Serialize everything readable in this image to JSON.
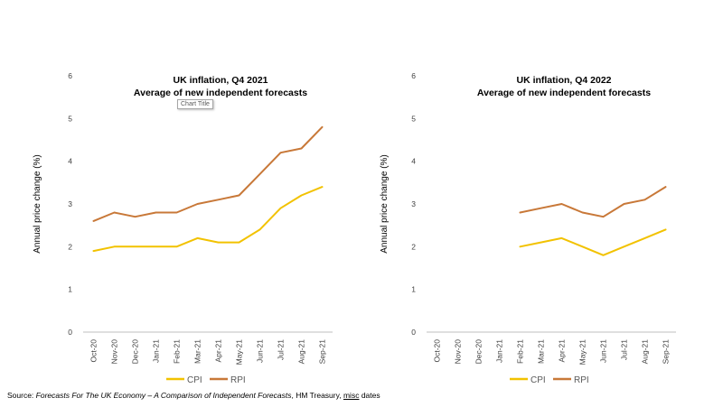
{
  "colors": {
    "cpi": "#f2c200",
    "rpi": "#c87838",
    "axis": "#bfbfbf"
  },
  "tooltip": "Chart Title",
  "source": {
    "prefix": "Source: ",
    "title": "Forecasts For The UK Economy – A Comparison of Independent Forecasts",
    "middle": ", HM Treasury, ",
    "misc": "misc",
    "suffix": " dates"
  },
  "chart_data": [
    {
      "type": "line",
      "title": "UK inflation, Q4 2021",
      "subtitle": "Average of new independent forecasts",
      "ylabel": "Annual price change (%)",
      "xlabel": "",
      "ylim": [
        0,
        6
      ],
      "yticks": [
        0,
        1,
        2,
        3,
        4,
        5,
        6
      ],
      "legend_position": "bottom",
      "categories": [
        "Oct-20",
        "Nov-20",
        "Dec-20",
        "Jan-21",
        "Feb-21",
        "Mar-21",
        "Apr-21",
        "May-21",
        "Jun-21",
        "Jul-21",
        "Aug-21",
        "Sep-21"
      ],
      "series": [
        {
          "name": "CPI",
          "values": [
            1.9,
            2.0,
            2.0,
            2.0,
            2.0,
            2.2,
            2.1,
            2.1,
            2.4,
            2.9,
            3.2,
            3.4
          ]
        },
        {
          "name": "RPI",
          "values": [
            2.6,
            2.8,
            2.7,
            2.8,
            2.8,
            3.0,
            3.1,
            3.2,
            3.7,
            4.2,
            4.3,
            4.8
          ]
        }
      ]
    },
    {
      "type": "line",
      "title": "UK inflation, Q4 2022",
      "subtitle": "Average of new independent forecasts",
      "ylabel": "Annual price change (%)",
      "xlabel": "",
      "ylim": [
        0,
        6
      ],
      "yticks": [
        0,
        1,
        2,
        3,
        4,
        5,
        6
      ],
      "legend_position": "bottom",
      "categories": [
        "Oct-20",
        "Nov-20",
        "Dec-20",
        "Jan-21",
        "Feb-21",
        "Mar-21",
        "Apr-21",
        "May-21",
        "Jun-21",
        "Jul-21",
        "Aug-21",
        "Sep-21"
      ],
      "series": [
        {
          "name": "CPI",
          "values": [
            null,
            null,
            null,
            null,
            2.0,
            2.1,
            2.2,
            2.0,
            1.8,
            2.0,
            2.2,
            2.4
          ]
        },
        {
          "name": "RPI",
          "values": [
            null,
            null,
            null,
            null,
            2.8,
            2.9,
            3.0,
            2.8,
            2.7,
            3.0,
            3.1,
            3.4
          ]
        }
      ]
    }
  ]
}
